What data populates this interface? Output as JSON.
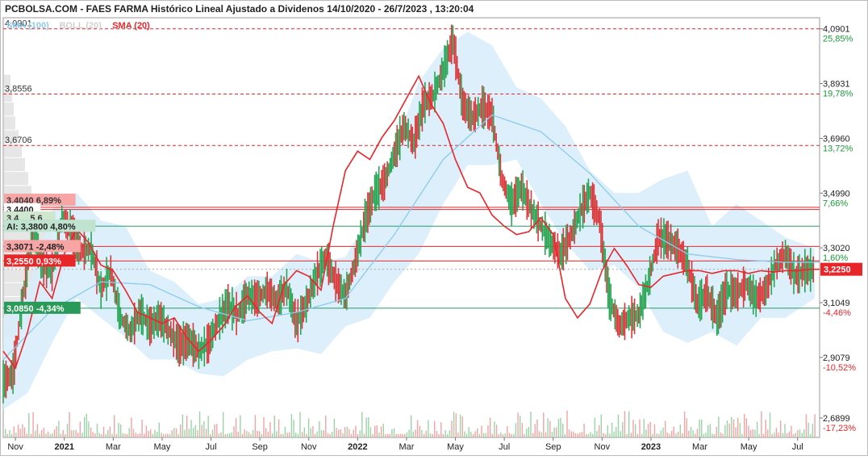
{
  "chart_data": {
    "type": "line",
    "title": "PCBOLSA.COM - FAES FARMA Histórico Lineal Ajustado a Dividenos 14/10/2020 - 26/7/2023 , 13:20:04",
    "legend": [
      {
        "label": "SMA (100)",
        "color": "#8ccbec"
      },
      {
        "label": "BOLL (20)",
        "color": "#d0d0d0"
      },
      {
        "label": "SMA (20)",
        "color": "#e8262a"
      }
    ],
    "ylim": [
      2.62,
      4.13
    ],
    "y_scale": "linear",
    "grid": true,
    "x_tick_labels": [
      {
        "label": "Nov",
        "x": 0.5,
        "bold": false
      },
      {
        "label": "2021",
        "x": 2.5,
        "bold": true
      },
      {
        "label": "Mar",
        "x": 4.5,
        "bold": false
      },
      {
        "label": "May",
        "x": 6.5,
        "bold": false
      },
      {
        "label": "Jul",
        "x": 8.5,
        "bold": false
      },
      {
        "label": "Sep",
        "x": 10.5,
        "bold": false
      },
      {
        "label": "Nov",
        "x": 12.5,
        "bold": false
      },
      {
        "label": "2022",
        "x": 14.5,
        "bold": true
      },
      {
        "label": "Mar",
        "x": 16.5,
        "bold": false
      },
      {
        "label": "May",
        "x": 18.5,
        "bold": false
      },
      {
        "label": "Jul",
        "x": 20.5,
        "bold": false
      },
      {
        "label": "Sep",
        "x": 22.5,
        "bold": false
      },
      {
        "label": "Nov",
        "x": 24.5,
        "bold": false
      },
      {
        "label": "2023",
        "x": 26.5,
        "bold": true
      },
      {
        "label": "Mar",
        "x": 28.5,
        "bold": false
      },
      {
        "label": "May",
        "x": 30.5,
        "bold": false
      },
      {
        "label": "Jul",
        "x": 32.5,
        "bold": false
      }
    ],
    "x_range": [
      0,
      33.4
    ],
    "right_axis_labels": [
      {
        "value": 4.0901,
        "price": "4,0901",
        "pct": "25,85%",
        "pct_color": "#1a9a3a"
      },
      {
        "value": 3.8931,
        "price": "3,8931",
        "pct": "19,78%",
        "pct_color": "#1a9a3a"
      },
      {
        "value": 3.696,
        "price": "3,6960",
        "pct": "13,72%",
        "pct_color": "#1a9a3a"
      },
      {
        "value": 3.499,
        "price": "3,4990",
        "pct": "7,66%",
        "pct_color": "#1a9a3a"
      },
      {
        "value": 3.302,
        "price": "3,3020",
        "pct": "1,60%",
        "pct_color": "#1a9a3a"
      },
      {
        "value": 3.1049,
        "price": "3,1049",
        "pct": "-4,46%",
        "pct_color": "#e8262a"
      },
      {
        "value": 2.9079,
        "price": "2,9079",
        "pct": "-10,52%",
        "pct_color": "#e8262a"
      },
      {
        "value": 2.6899,
        "price": "2,6899",
        "pct": "-17,23%",
        "pct_color": "#e8262a"
      }
    ],
    "current_price": {
      "value": 3.225,
      "label": "3,2250",
      "color": "#e8262a"
    },
    "horizontal_lines": [
      {
        "value": 4.0901,
        "color": "#e8262a",
        "style": "dashed",
        "left_label": "4,0901"
      },
      {
        "value": 3.8556,
        "color": "#e8262a",
        "style": "dashed",
        "left_label": "3,8556"
      },
      {
        "value": 3.6706,
        "color": "#e8262a",
        "style": "dashed",
        "left_label": "3,6706"
      },
      {
        "value": 3.448,
        "color": "#e8262a",
        "style": "solid"
      },
      {
        "value": 3.44,
        "color": "#e8262a",
        "style": "solid"
      },
      {
        "value": 3.38,
        "color": "#2a9a6a",
        "style": "solid"
      },
      {
        "value": 3.3071,
        "color": "#e8262a",
        "style": "solid"
      },
      {
        "value": 3.255,
        "color": "#e8262a",
        "style": "solid"
      },
      {
        "value": 3.085,
        "color": "#2a9a6a",
        "style": "solid"
      }
    ],
    "left_tags": [
      {
        "value": 3.474,
        "text": "3,4040  6,89%",
        "bg": "#f7a5a5",
        "fg": "#333333"
      },
      {
        "value": 3.44,
        "text": "3,4400",
        "bg": "#ffffff",
        "fg": "#222222"
      },
      {
        "value": 3.41,
        "text": "3,4… 5,6…",
        "bg": "#cfe6cf",
        "fg": "#333333"
      },
      {
        "value": 3.38,
        "text": "AI: 3,3800  4,80%",
        "bg": "#bfe3cf",
        "fg": "#222222"
      },
      {
        "value": 3.3071,
        "text": "3,3071  -2,48%",
        "bg": "#f7a5a5",
        "fg": "#222222"
      },
      {
        "value": 3.255,
        "text": "3,2550  0,93%",
        "bg": "#e8262a",
        "fg": "#ffffff"
      },
      {
        "value": 3.085,
        "text": "3,0850  -4,34%",
        "bg": "#2a9a5a",
        "fg": "#ffffff"
      }
    ],
    "series": [
      {
        "name": "SMA (20)",
        "color": "#e8262a",
        "x": [
          0,
          0.5,
          1,
          1.5,
          2,
          2.5,
          3,
          3.5,
          4,
          4.5,
          5,
          5.5,
          6,
          6.5,
          7,
          7.5,
          8,
          8.5,
          9,
          9.5,
          10,
          10.5,
          11,
          11.5,
          12,
          12.5,
          13,
          13.5,
          14,
          14.5,
          15,
          15.5,
          16,
          16.5,
          17,
          17.5,
          18,
          18.5,
          19,
          19.5,
          20,
          20.5,
          21,
          21.5,
          22,
          22.5,
          23,
          23.5,
          24,
          24.5,
          25,
          25.5,
          26,
          26.5,
          27,
          27.5,
          28,
          28.5,
          29,
          29.5,
          30,
          30.5,
          31,
          31.5,
          32,
          32.5,
          33,
          33.4
        ],
        "values": [
          2.93,
          2.87,
          3.0,
          3.18,
          3.12,
          3.28,
          3.37,
          3.32,
          3.24,
          3.22,
          3.15,
          3.07,
          3.05,
          3.03,
          3.05,
          2.98,
          2.93,
          2.97,
          3.02,
          3.09,
          3.13,
          3.07,
          3.03,
          3.17,
          3.22,
          3.2,
          3.15,
          3.38,
          3.58,
          3.65,
          3.62,
          3.7,
          3.76,
          3.84,
          3.92,
          3.82,
          3.75,
          3.62,
          3.52,
          3.5,
          3.42,
          3.38,
          3.35,
          3.36,
          3.41,
          3.35,
          3.12,
          3.05,
          3.1,
          3.22,
          3.3,
          3.24,
          3.17,
          3.16,
          3.2,
          3.21,
          3.22,
          3.22,
          3.21,
          3.22,
          3.22,
          3.21,
          3.22,
          3.215,
          3.22,
          3.22,
          3.225,
          3.225
        ]
      },
      {
        "name": "SMA (100)",
        "color": "#8ccbec",
        "x": [
          0,
          2,
          4,
          6,
          8,
          10,
          12,
          14,
          16,
          18,
          20,
          22,
          24,
          26,
          28,
          30,
          32,
          33.4
        ],
        "values": [
          2.9,
          3.08,
          3.18,
          3.17,
          3.09,
          3.04,
          3.07,
          3.12,
          3.35,
          3.62,
          3.78,
          3.72,
          3.57,
          3.38,
          3.28,
          3.26,
          3.25,
          3.25
        ]
      }
    ],
    "price_path": {
      "x": [
        0,
        0.4,
        0.8,
        1.2,
        1.6,
        2.0,
        2.4,
        2.8,
        3.2,
        3.6,
        4.0,
        4.4,
        4.8,
        5.2,
        5.6,
        6.0,
        6.4,
        6.8,
        7.2,
        7.6,
        8.0,
        8.4,
        8.8,
        9.2,
        9.6,
        10.0,
        10.4,
        10.8,
        11.2,
        11.6,
        12.0,
        12.4,
        12.8,
        13.2,
        13.6,
        14.0,
        14.4,
        14.8,
        15.2,
        15.6,
        16.0,
        16.4,
        16.8,
        17.2,
        17.6,
        18.0,
        18.4,
        18.8,
        19.2,
        19.6,
        20.0,
        20.4,
        20.8,
        21.2,
        21.6,
        22.0,
        22.4,
        22.8,
        23.2,
        23.6,
        24.0,
        24.4,
        24.8,
        25.2,
        25.6,
        26.0,
        26.4,
        26.8,
        27.2,
        27.6,
        28.0,
        28.4,
        28.8,
        29.2,
        29.6,
        30.0,
        30.4,
        30.8,
        31.2,
        31.6,
        32.0,
        32.4,
        32.8,
        33.2
      ],
      "values": [
        2.82,
        2.85,
        3.12,
        3.36,
        3.24,
        3.22,
        3.41,
        3.36,
        3.29,
        3.3,
        3.15,
        3.22,
        3.05,
        3.0,
        3.07,
        3.02,
        3.05,
        3.0,
        2.95,
        2.97,
        2.93,
        2.96,
        3.04,
        3.1,
        3.06,
        3.13,
        3.12,
        3.15,
        3.11,
        3.16,
        3.03,
        3.1,
        3.2,
        3.27,
        3.18,
        3.13,
        3.25,
        3.4,
        3.5,
        3.54,
        3.64,
        3.74,
        3.68,
        3.82,
        3.85,
        3.94,
        4.05,
        3.82,
        3.77,
        3.81,
        3.78,
        3.55,
        3.46,
        3.52,
        3.44,
        3.38,
        3.32,
        3.28,
        3.34,
        3.43,
        3.5,
        3.4,
        3.12,
        3.02,
        3.05,
        3.06,
        3.18,
        3.34,
        3.33,
        3.3,
        3.24,
        3.1,
        3.14,
        3.05,
        3.15,
        3.14,
        3.17,
        3.12,
        3.15,
        3.24,
        3.28,
        3.2,
        3.22,
        3.225
      ]
    },
    "bollinger_band": {
      "x": [
        0,
        1,
        2,
        3,
        4,
        5,
        6,
        7,
        8,
        9,
        10,
        11,
        12,
        13,
        14,
        15,
        16,
        17,
        18,
        19,
        20,
        21,
        22,
        23,
        24,
        25,
        26,
        27,
        28,
        29,
        30,
        31,
        32,
        33.2
      ],
      "upper": [
        3.05,
        3.15,
        3.44,
        3.5,
        3.4,
        3.38,
        3.22,
        3.18,
        3.1,
        3.12,
        3.2,
        3.2,
        3.28,
        3.25,
        3.27,
        3.42,
        3.66,
        3.9,
        4.02,
        4.08,
        4.03,
        3.88,
        3.84,
        3.74,
        3.58,
        3.5,
        3.5,
        3.55,
        3.58,
        3.38,
        3.46,
        3.4,
        3.34,
        3.3
      ],
      "lower": [
        2.72,
        2.78,
        2.96,
        3.12,
        3.05,
        2.98,
        2.9,
        2.9,
        2.85,
        2.84,
        2.9,
        2.93,
        2.94,
        2.92,
        3.02,
        3.05,
        3.18,
        3.28,
        3.46,
        3.6,
        3.6,
        3.62,
        3.46,
        3.32,
        3.22,
        3.24,
        3.16,
        3.0,
        2.96,
        3.0,
        2.95,
        3.05,
        3.05,
        3.12
      ]
    },
    "volume_profile": {
      "comment_free": true,
      "levels": [
        3.9,
        3.85,
        3.8,
        3.75,
        3.7,
        3.65,
        3.6,
        3.55,
        3.5,
        3.45,
        3.4,
        3.35,
        3.3,
        3.25,
        3.2,
        3.15,
        3.1,
        3.05,
        3.0
      ],
      "widths": [
        8,
        10,
        12,
        14,
        18,
        22,
        26,
        30,
        34,
        40,
        46,
        58,
        70,
        80,
        72,
        62,
        56,
        40,
        22
      ]
    },
    "volume_bars": {
      "count": 380,
      "max_value": 1.0
    }
  }
}
